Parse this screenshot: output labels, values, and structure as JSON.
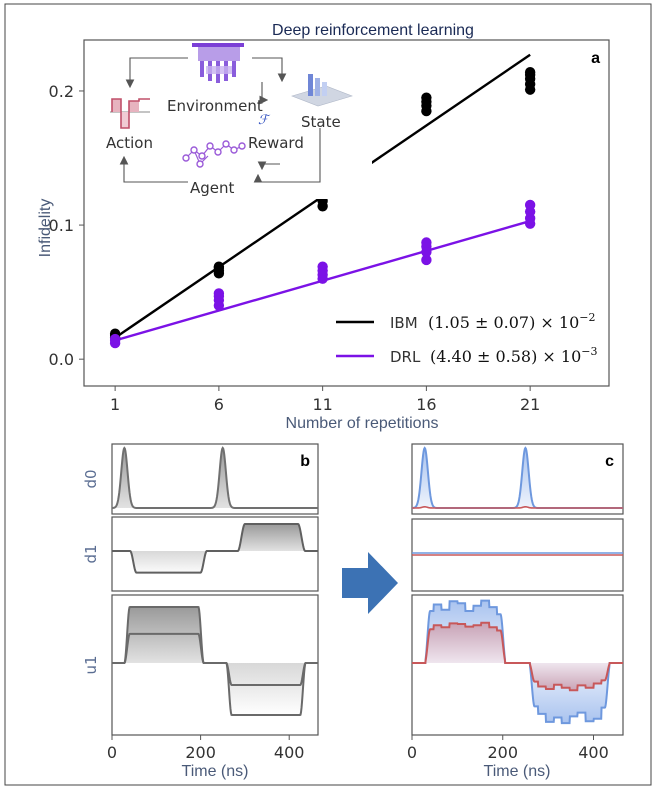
{
  "figure": {
    "title": "Deep reinforcement learning",
    "panel_labels": {
      "a": "a",
      "b": "b",
      "c": "c"
    }
  },
  "inset": {
    "environment": "Environment",
    "state": "State",
    "action": "Action",
    "reward": "Reward",
    "agent": "Agent",
    "fidelity_symbol": "ℱ"
  },
  "chart_data": [
    {
      "type": "scatter",
      "xlabel": "Number of repetitions",
      "ylabel": "Infidelity",
      "x_ticks": [
        1,
        6,
        11,
        16,
        21
      ],
      "y_ticks": [
        "0.0",
        "0.1",
        "0.2"
      ],
      "y_tick_values": [
        0.0,
        0.1,
        0.2
      ],
      "xlim": [
        -0.5,
        24.8
      ],
      "ylim": [
        -0.02,
        0.238
      ],
      "grid": false,
      "legend_position": "bottom-right",
      "series": [
        {
          "name": "IBM",
          "legend_math": "(1.05 ± 0.07) × 10",
          "legend_exp": "−2",
          "color": "#000000",
          "points": [
            [
              1,
              0.016
            ],
            [
              1,
              0.018
            ],
            [
              1,
              0.019
            ],
            [
              6,
              0.064
            ],
            [
              6,
              0.066
            ],
            [
              6,
              0.068
            ],
            [
              6,
              0.069
            ],
            [
              11,
              0.114
            ],
            [
              11,
              0.118
            ],
            [
              11,
              0.121
            ],
            [
              11,
              0.124
            ],
            [
              16,
              0.185
            ],
            [
              16,
              0.189
            ],
            [
              16,
              0.192
            ],
            [
              16,
              0.195
            ],
            [
              21,
              0.201
            ],
            [
              21,
              0.205
            ],
            [
              21,
              0.209
            ],
            [
              21,
              0.212
            ],
            [
              21,
              0.214
            ]
          ],
          "fit": [
            [
              1,
              0.016
            ],
            [
              21,
              0.227
            ]
          ]
        },
        {
          "name": "DRL",
          "legend_math": "(4.40 ± 0.58) × 10",
          "legend_exp": "−3",
          "color": "#7b12e6",
          "points": [
            [
              1,
              0.012
            ],
            [
              1,
              0.014
            ],
            [
              1,
              0.015
            ],
            [
              6,
              0.04
            ],
            [
              6,
              0.044
            ],
            [
              6,
              0.047
            ],
            [
              6,
              0.049
            ],
            [
              11,
              0.06
            ],
            [
              11,
              0.063
            ],
            [
              11,
              0.066
            ],
            [
              11,
              0.069
            ],
            [
              16,
              0.074
            ],
            [
              16,
              0.08
            ],
            [
              16,
              0.084
            ],
            [
              16,
              0.087
            ],
            [
              21,
              0.101
            ],
            [
              21,
              0.105
            ],
            [
              21,
              0.11
            ],
            [
              21,
              0.115
            ]
          ],
          "fit": [
            [
              1,
              0.014
            ],
            [
              21,
              0.103
            ]
          ]
        }
      ]
    },
    {
      "type": "line",
      "panel": "b",
      "xlabel": "Time (ns)",
      "x_ticks": [
        0,
        200,
        400
      ],
      "xlim": [
        0,
        465
      ],
      "channels": [
        "d0",
        "d1",
        "u1"
      ],
      "colors": {
        "gray": "#707070",
        "fill": "#bcbcbc"
      }
    },
    {
      "type": "line",
      "panel": "c",
      "xlabel": "Time (ns)",
      "x_ticks": [
        0,
        200,
        400
      ],
      "xlim": [
        0,
        465
      ],
      "channels": [
        "d0",
        "d1",
        "u1"
      ],
      "colors": {
        "blue": "#6e98de",
        "red": "#c8585a"
      }
    }
  ]
}
